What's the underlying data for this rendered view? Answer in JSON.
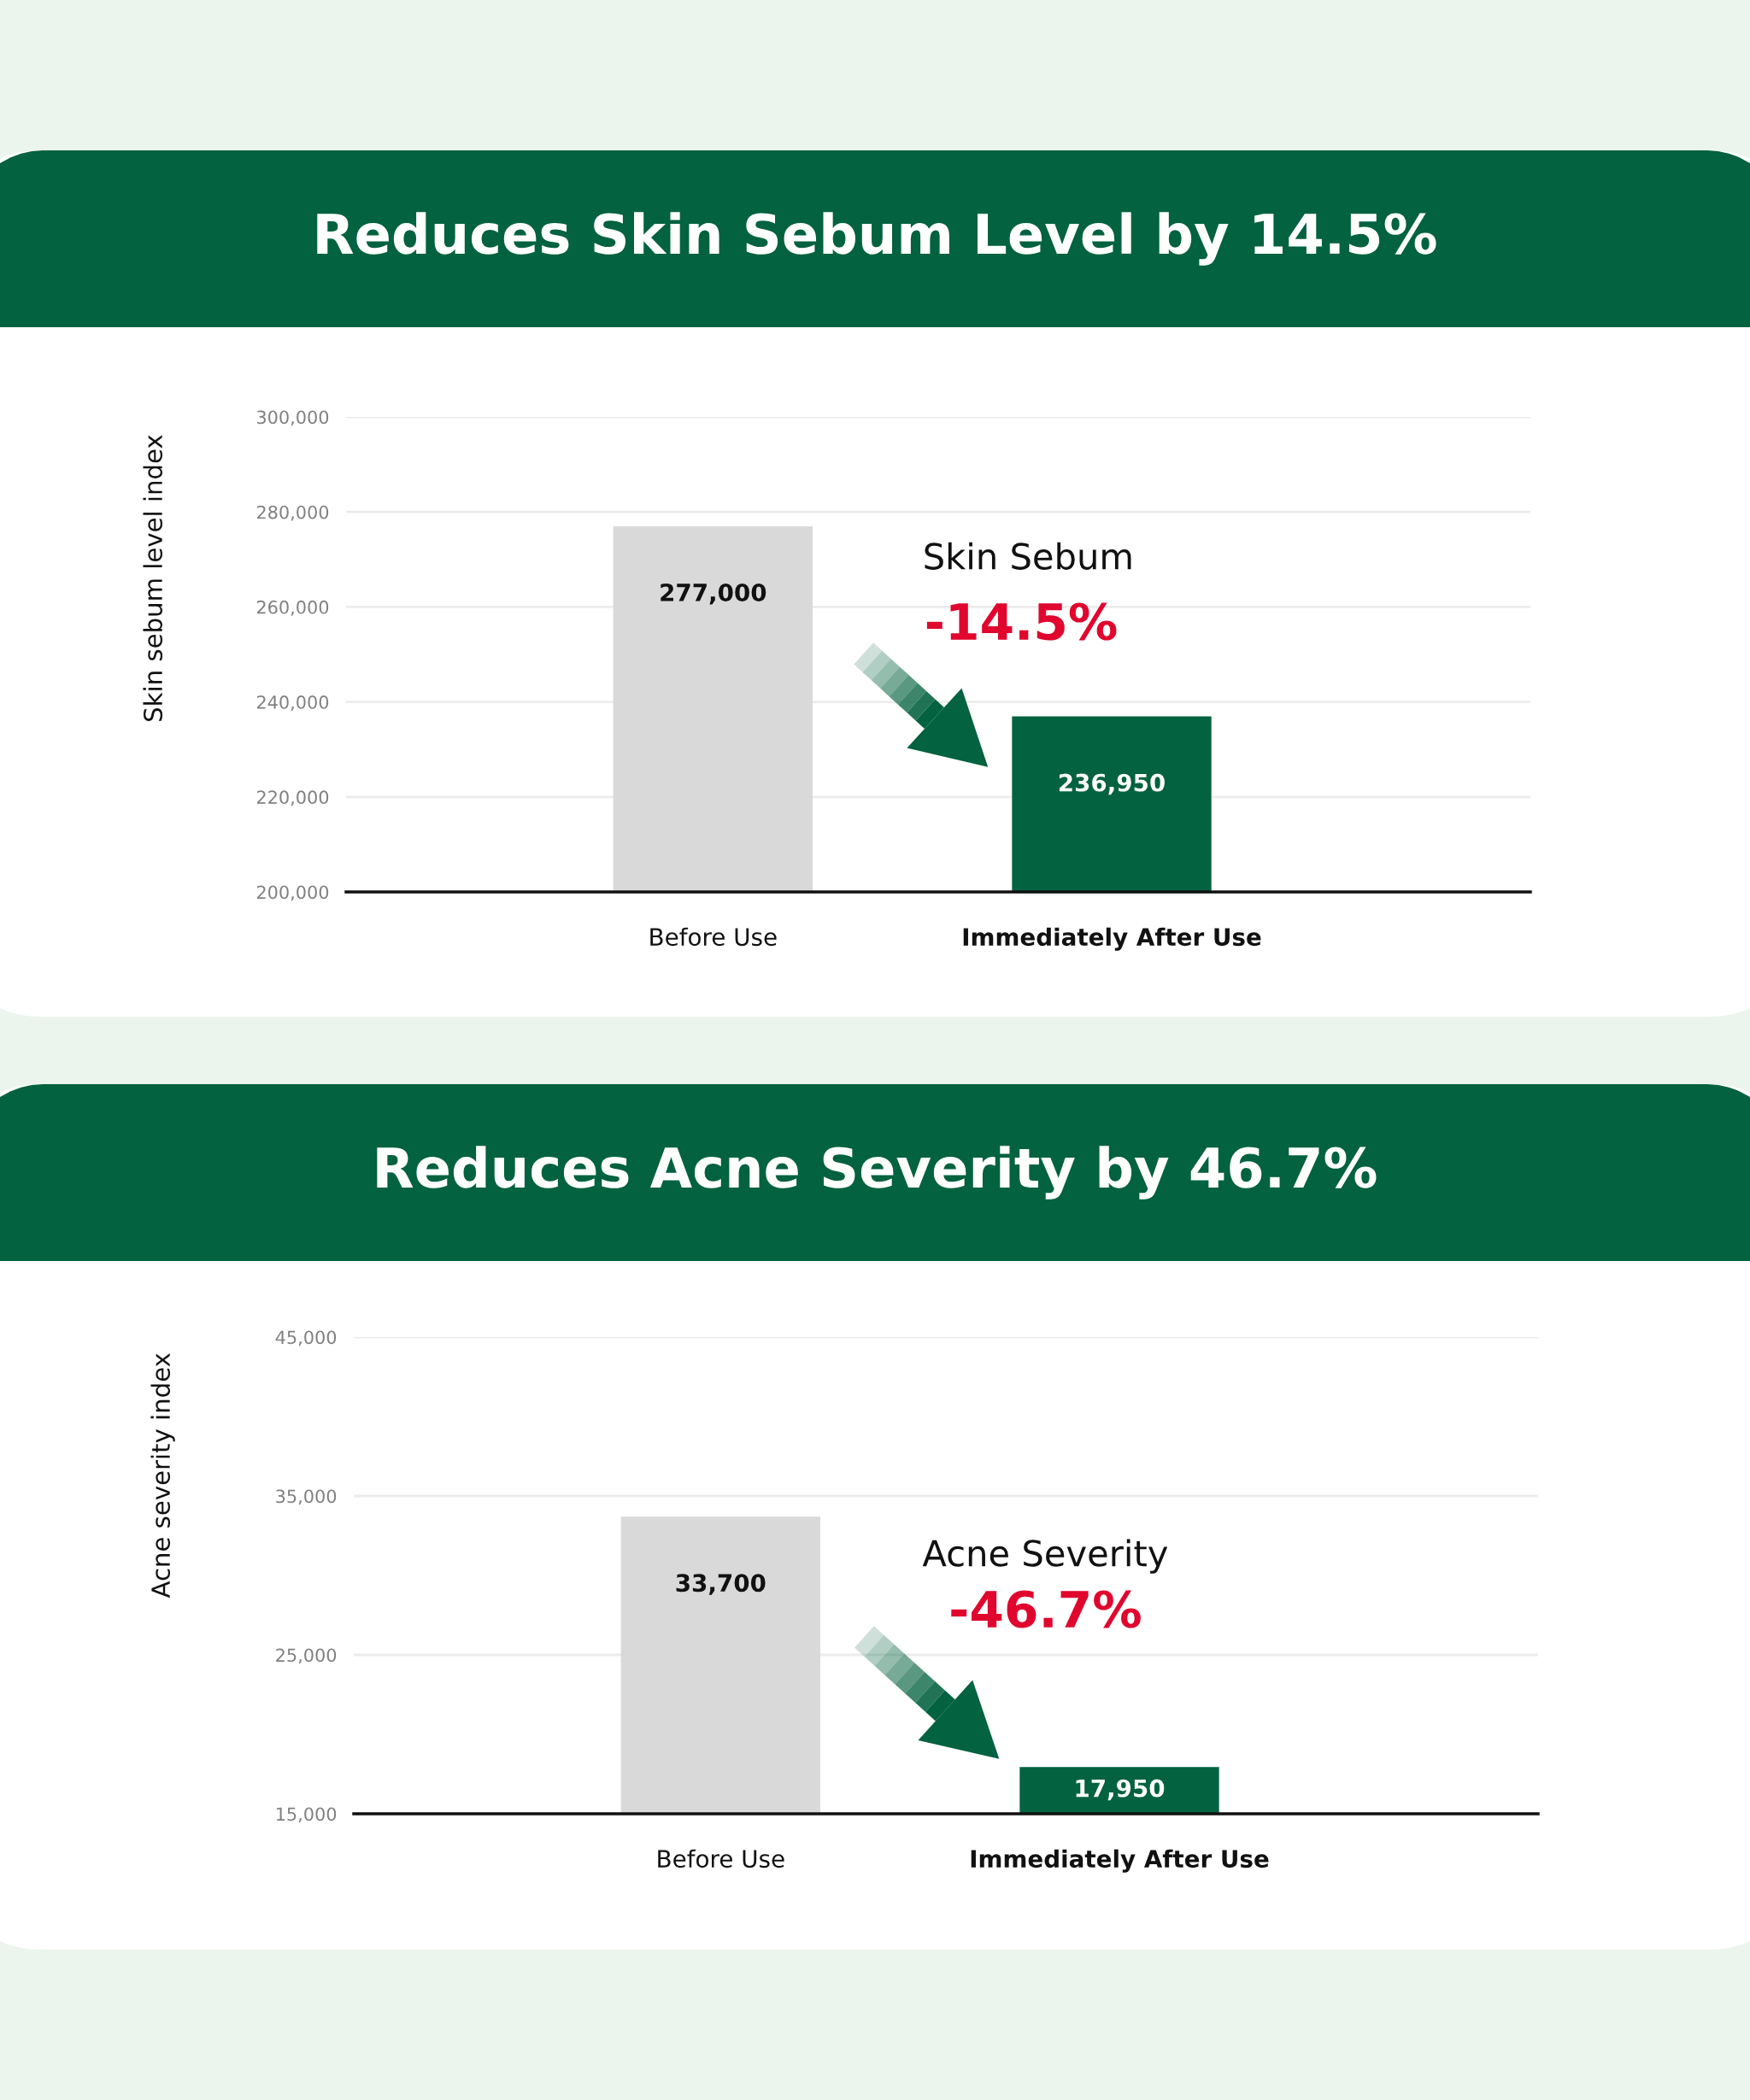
{
  "chart_data": [
    {
      "type": "bar",
      "title": "Reduces Skin Sebum Level by 14.5%",
      "ylabel": "Skin sebum level index",
      "categories": [
        "Before Use",
        "Immediately After Use"
      ],
      "values": [
        277000,
        236950
      ],
      "value_labels": [
        "277,000",
        "236,950"
      ],
      "colors": [
        "#d9d9d9",
        "#03623f"
      ],
      "ylim": [
        200000,
        300000
      ],
      "yticks": [
        {
          "value": 200000,
          "label": "200,000"
        },
        {
          "value": 220000,
          "label": "220,000"
        },
        {
          "value": 240000,
          "label": "240,000"
        },
        {
          "value": 260000,
          "label": "260,000"
        },
        {
          "value": 280000,
          "label": "280,000"
        },
        {
          "value": 300000,
          "label": "300,000"
        }
      ],
      "grid": "y",
      "annotations": [
        "Skin Sebum",
        "-14.5%"
      ]
    },
    {
      "type": "bar",
      "title": "Reduces Acne Severity by 46.7%",
      "ylabel": "Acne severity index",
      "categories": [
        "Before Use",
        "Immediately After Use"
      ],
      "values": [
        33700,
        17950
      ],
      "value_labels": [
        "33,700",
        "17,950"
      ],
      "colors": [
        "#d9d9d9",
        "#03623f"
      ],
      "ylim": [
        15000,
        45000
      ],
      "yticks": [
        {
          "value": 15000,
          "label": "15,000"
        },
        {
          "value": 25000,
          "label": "25,000"
        },
        {
          "value": 35000,
          "label": "35,000"
        },
        {
          "value": 45000,
          "label": "45,000"
        }
      ],
      "grid": "y",
      "annotations": [
        "Acne Severity",
        "-46.7%"
      ]
    }
  ]
}
